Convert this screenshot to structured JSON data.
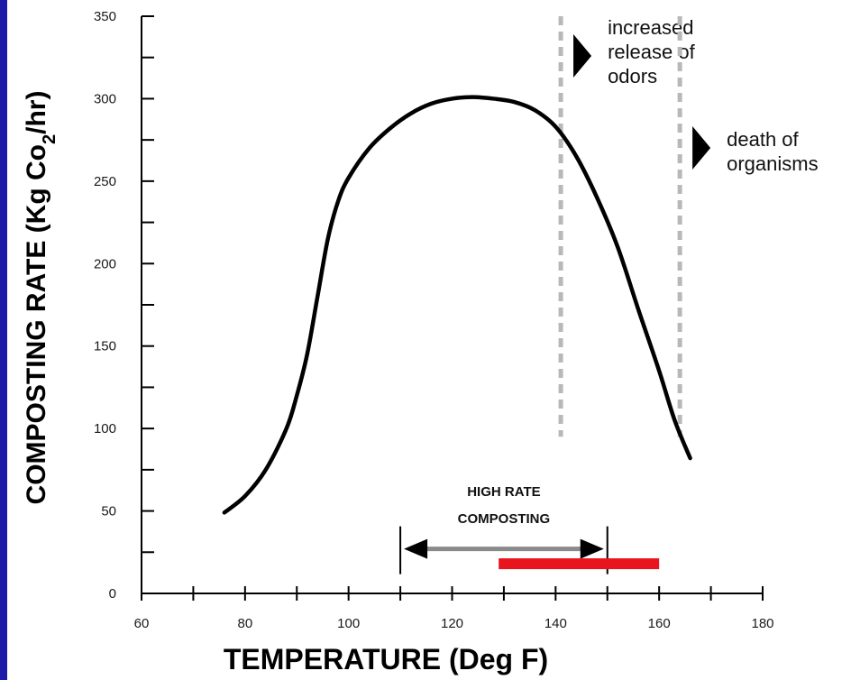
{
  "chart_data": {
    "type": "line",
    "xlabel": "TEMPERATURE (Deg F)",
    "ylabel_main": "COMPOSTING RATE (Kg Co",
    "ylabel_sub": "2",
    "ylabel_end": "/hr)",
    "xlim": [
      60,
      180
    ],
    "ylim": [
      0,
      350
    ],
    "x_ticks": [
      60,
      80,
      100,
      120,
      140,
      160,
      180
    ],
    "y_ticks": [
      0,
      50,
      100,
      150,
      200,
      250,
      300,
      350
    ],
    "series": [
      {
        "x": [
          76,
          80,
          84,
          88,
          90,
          92,
          94,
          96,
          98,
          100,
          104,
          108,
          112,
          116,
          120,
          124,
          128,
          132,
          136,
          140,
          144,
          148,
          152,
          156,
          160,
          163,
          166
        ],
        "y": [
          49,
          59,
          75,
          100,
          120,
          145,
          180,
          215,
          238,
          252,
          270,
          282,
          291,
          297,
          300,
          301,
          300,
          298,
          293,
          283,
          265,
          240,
          210,
          172,
          135,
          105,
          82
        ]
      }
    ],
    "reference_lines": [
      {
        "x": 141,
        "style": "dashed",
        "label_lines": [
          "increased",
          "release of",
          "odors"
        ]
      },
      {
        "x": 164,
        "style": "dashed",
        "label_lines": [
          "death of",
          "organisms"
        ]
      }
    ],
    "range_annotation": {
      "label_lines": [
        "HIGH RATE",
        "COMPOSTING"
      ],
      "x_start": 110,
      "x_end": 150,
      "y": 27
    },
    "highlight_bar": {
      "x_start": 129,
      "x_end": 160,
      "y": 18,
      "color": "#e8141e"
    },
    "colors": {
      "border": "#1d1aa8",
      "curve": "#000000",
      "dashed": "#b8b8b8",
      "range_arrow": "#8a8a8a"
    }
  }
}
